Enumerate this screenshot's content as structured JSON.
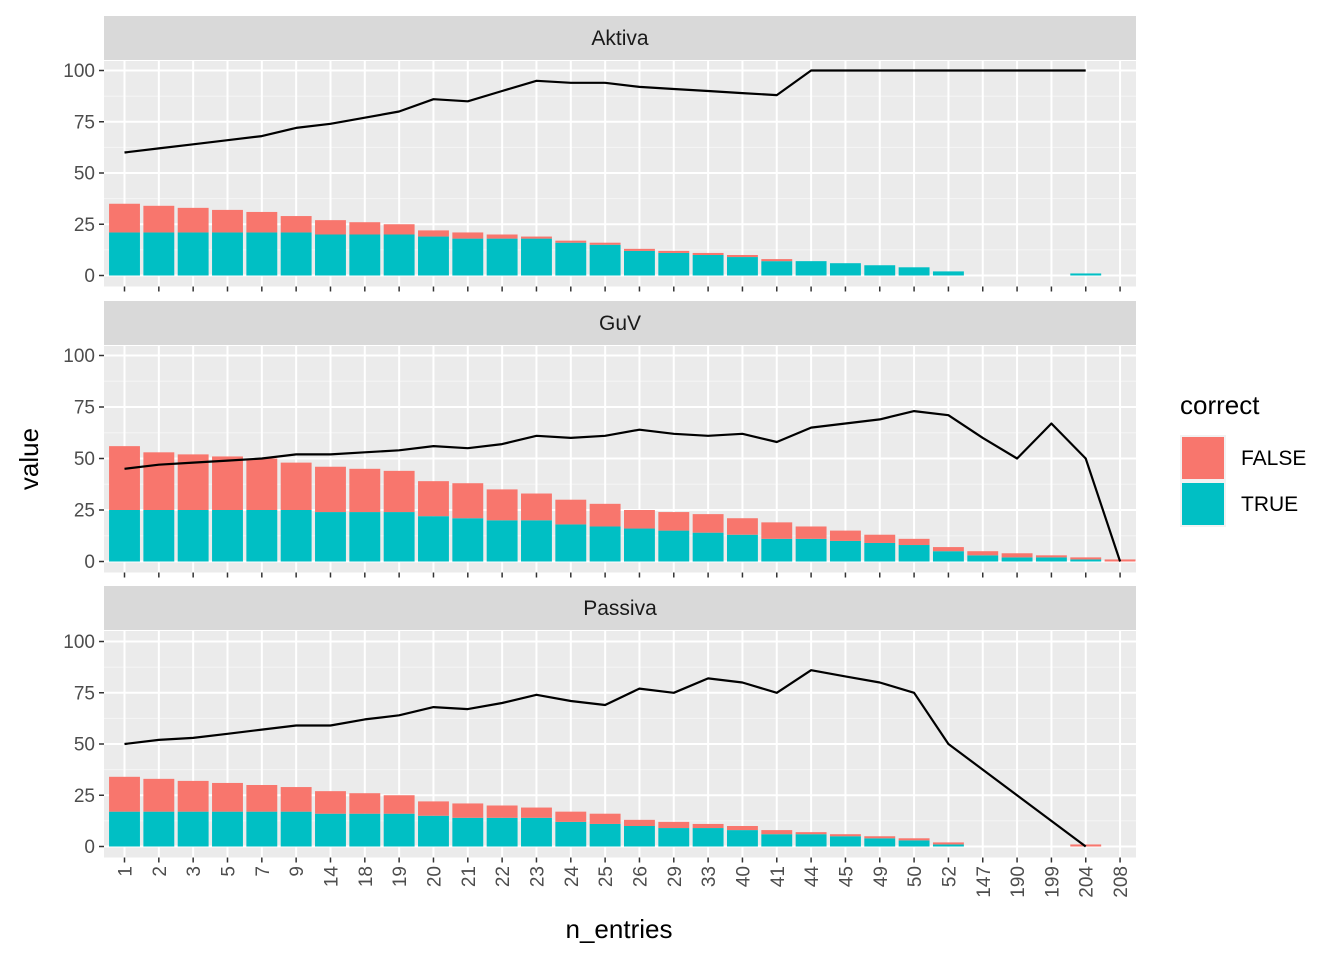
{
  "chart_data": {
    "type": "bar",
    "stacked": true,
    "overlay": "line",
    "xlabel": "n_entries",
    "ylabel": "value",
    "ylim": [
      0,
      120
    ],
    "yticks": [
      0,
      25,
      50,
      75,
      100
    ],
    "grid": true,
    "legend": {
      "title": "correct",
      "position": "right",
      "entries": [
        {
          "label": "FALSE",
          "color": "#F8766D"
        },
        {
          "label": "TRUE",
          "color": "#00BFC4"
        }
      ]
    },
    "categories": [
      "1",
      "2",
      "3",
      "5",
      "7",
      "9",
      "14",
      "18",
      "19",
      "20",
      "21",
      "22",
      "23",
      "24",
      "25",
      "26",
      "29",
      "33",
      "40",
      "41",
      "44",
      "45",
      "49",
      "50",
      "52",
      "147",
      "190",
      "199",
      "204",
      "208"
    ],
    "panels": [
      {
        "name": "Aktiva",
        "series": [
          {
            "name": "TRUE",
            "values": [
              21,
              21,
              21,
              21,
              21,
              21,
              20,
              20,
              20,
              19,
              18,
              18,
              18,
              16,
              15,
              12,
              11,
              10,
              9,
              7,
              7,
              6,
              5,
              4,
              2,
              0,
              0,
              0,
              1,
              0
            ]
          },
          {
            "name": "FALSE",
            "values": [
              14,
              13,
              12,
              11,
              10,
              8,
              7,
              6,
              5,
              3,
              3,
              2,
              1,
              1,
              1,
              1,
              1,
              1,
              1,
              1,
              0,
              0,
              0,
              0,
              0,
              0,
              0,
              0,
              0,
              0
            ]
          }
        ],
        "line": [
          60,
          62,
          64,
          66,
          68,
          72,
          74,
          77,
          80,
          86,
          85,
          90,
          95,
          94,
          94,
          92,
          91,
          90,
          89,
          88,
          100,
          100,
          100,
          100,
          100,
          100,
          100,
          100,
          100,
          null
        ]
      },
      {
        "name": "GuV",
        "series": [
          {
            "name": "TRUE",
            "values": [
              25,
              25,
              25,
              25,
              25,
              25,
              24,
              24,
              24,
              22,
              21,
              20,
              20,
              18,
              17,
              16,
              15,
              14,
              13,
              11,
              11,
              10,
              9,
              8,
              5,
              3,
              2,
              2,
              1,
              0
            ]
          },
          {
            "name": "FALSE",
            "values": [
              31,
              28,
              27,
              26,
              25,
              23,
              22,
              21,
              20,
              17,
              17,
              15,
              13,
              12,
              11,
              9,
              9,
              9,
              8,
              8,
              6,
              5,
              4,
              3,
              2,
              2,
              2,
              1,
              1,
              1
            ]
          }
        ],
        "line": [
          45,
          47,
          48,
          49,
          50,
          52,
          52,
          53,
          54,
          56,
          55,
          57,
          61,
          60,
          61,
          64,
          62,
          61,
          62,
          58,
          65,
          67,
          69,
          73,
          71,
          60,
          50,
          67,
          50,
          0
        ]
      },
      {
        "name": "Passiva",
        "series": [
          {
            "name": "TRUE",
            "values": [
              17,
              17,
              17,
              17,
              17,
              17,
              16,
              16,
              16,
              15,
              14,
              14,
              14,
              12,
              11,
              10,
              9,
              9,
              8,
              6,
              6,
              5,
              4,
              3,
              1,
              0,
              0,
              0,
              0,
              0
            ]
          },
          {
            "name": "FALSE",
            "values": [
              17,
              16,
              15,
              14,
              13,
              12,
              11,
              10,
              9,
              7,
              7,
              6,
              5,
              5,
              5,
              3,
              3,
              2,
              2,
              2,
              1,
              1,
              1,
              1,
              1,
              0,
              0,
              0,
              1,
              0
            ]
          }
        ],
        "line": [
          50,
          52,
          53,
          55,
          57,
          59,
          59,
          62,
          64,
          68,
          67,
          70,
          74,
          71,
          69,
          77,
          75,
          82,
          80,
          75,
          86,
          83,
          80,
          75,
          50,
          null,
          null,
          null,
          0,
          null
        ]
      }
    ]
  }
}
